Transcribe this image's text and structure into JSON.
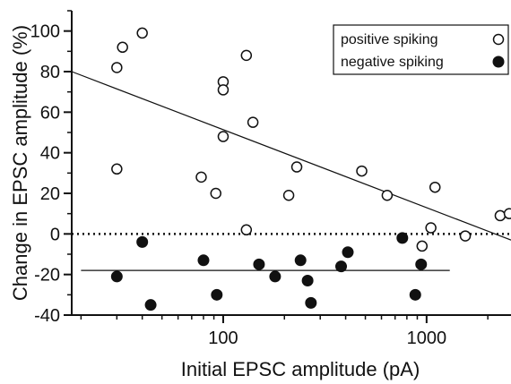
{
  "chart_data": {
    "type": "scatter",
    "xlabel": "Initial EPSC amplitude (pA)",
    "ylabel": "Change in EPSC amplitude (%)",
    "x_scale": "log",
    "xlim": [
      18,
      2600
    ],
    "ylim": [
      -40,
      110
    ],
    "x_ticks": [
      100,
      1000
    ],
    "x_tick_labels": [
      "100",
      "1000"
    ],
    "y_ticks": [
      -40,
      -20,
      0,
      20,
      40,
      60,
      80,
      100
    ],
    "y_tick_labels": [
      "-40",
      "-20",
      "0",
      "20",
      "40",
      "60",
      "80",
      "100"
    ],
    "legend_position": "top-right",
    "series": [
      {
        "name": "positive spiking",
        "marker": "open-circle",
        "points": [
          [
            30,
            82
          ],
          [
            32,
            92
          ],
          [
            40,
            99
          ],
          [
            30,
            32
          ],
          [
            78,
            28
          ],
          [
            92,
            20
          ],
          [
            100,
            75
          ],
          [
            100,
            71
          ],
          [
            100,
            48
          ],
          [
            130,
            88
          ],
          [
            140,
            55
          ],
          [
            130,
            2
          ],
          [
            230,
            33
          ],
          [
            210,
            19
          ],
          [
            480,
            31
          ],
          [
            640,
            19
          ],
          [
            950,
            -6
          ],
          [
            1050,
            3
          ],
          [
            1100,
            23
          ],
          [
            1550,
            -1
          ],
          [
            2300,
            9
          ],
          [
            2550,
            10
          ]
        ]
      },
      {
        "name": "negative spiking",
        "marker": "filled-circle",
        "points": [
          [
            30,
            -21
          ],
          [
            40,
            -4
          ],
          [
            44,
            -35
          ],
          [
            80,
            -13
          ],
          [
            93,
            -30
          ],
          [
            150,
            -15
          ],
          [
            180,
            -21
          ],
          [
            240,
            -13
          ],
          [
            260,
            -23
          ],
          [
            270,
            -34
          ],
          [
            380,
            -16
          ],
          [
            410,
            -9
          ],
          [
            760,
            -2
          ],
          [
            880,
            -30
          ],
          [
            940,
            -15
          ]
        ]
      }
    ],
    "reference_lines": [
      {
        "style": "solid",
        "series": "positive spiking",
        "points": [
          [
            18,
            80
          ],
          [
            2600,
            -3
          ]
        ]
      },
      {
        "style": "solid",
        "series": "negative spiking",
        "points": [
          [
            20,
            -18
          ],
          [
            1300,
            -18
          ]
        ]
      },
      {
        "style": "dotted",
        "points": [
          [
            18,
            0
          ],
          [
            2600,
            0
          ]
        ]
      }
    ],
    "colors": {
      "axis": "#111111",
      "marker": "#111111",
      "background": "#ffffff"
    }
  }
}
